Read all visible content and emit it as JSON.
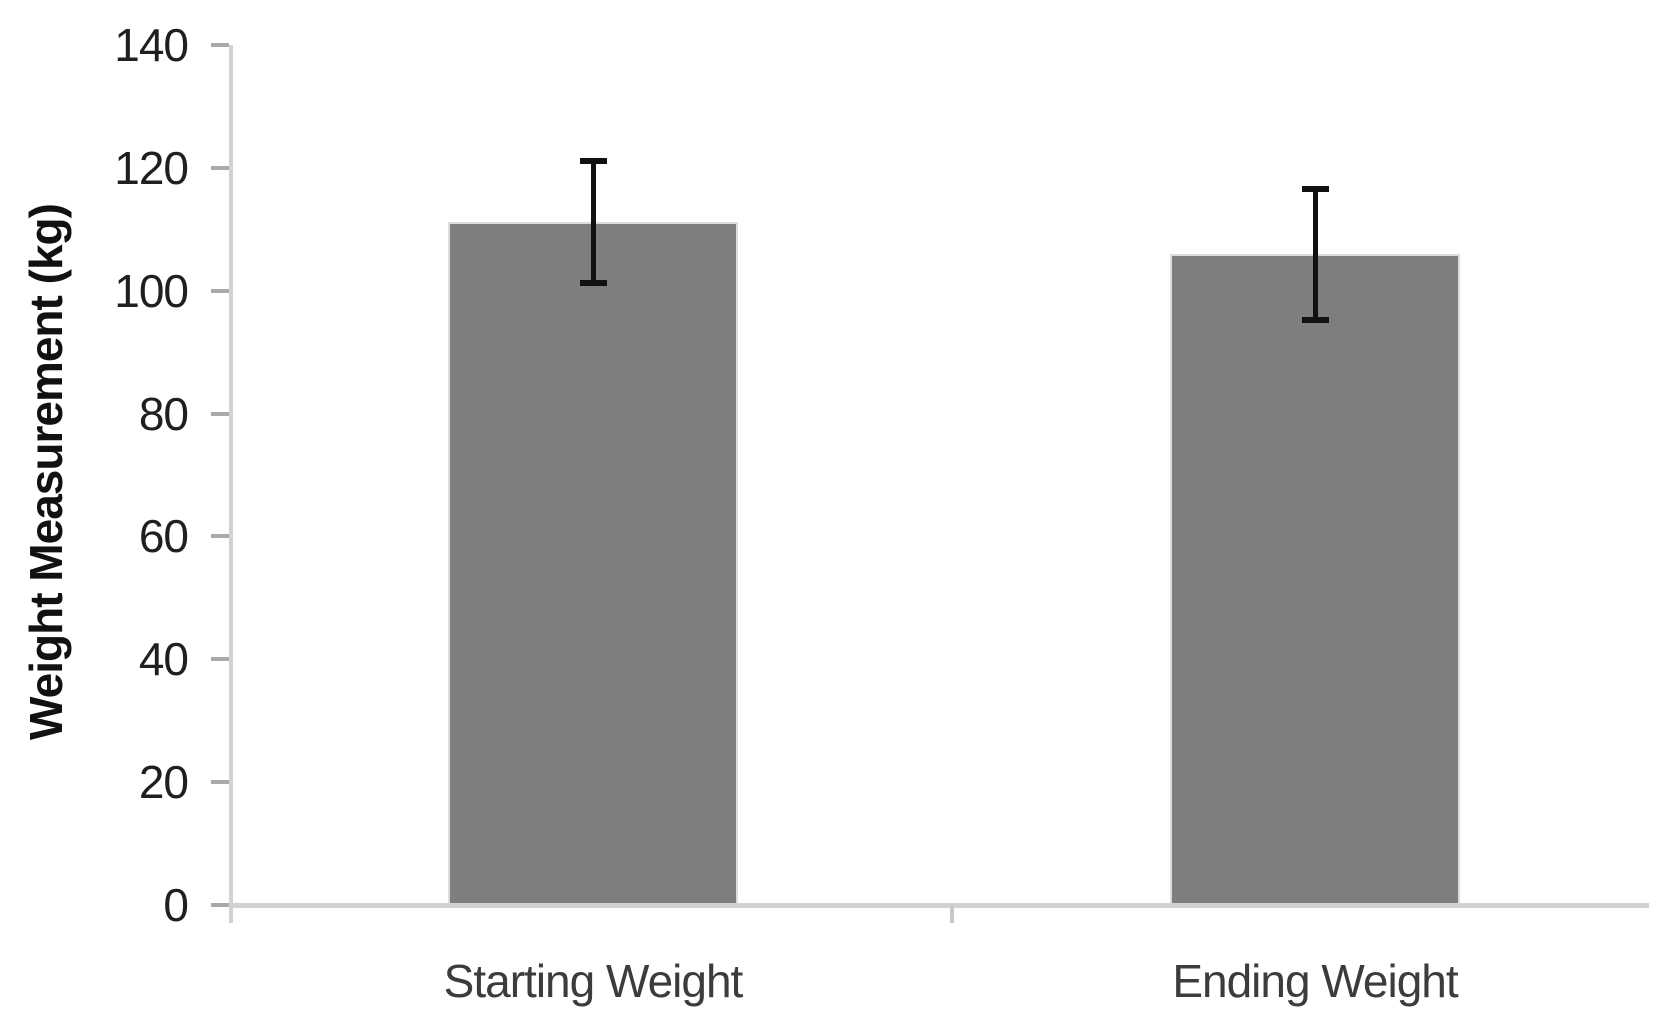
{
  "chart_data": {
    "type": "bar",
    "title": "",
    "categories": [
      "Starting Weight",
      "Ending Weight"
    ],
    "values": [
      111.2,
      105.9
    ],
    "error_bars": [
      10.2,
      11.0
    ],
    "xlabel": "",
    "ylabel": "Weight Measurement (kg)",
    "ylim": [
      0,
      140
    ],
    "yticks": [
      0,
      20,
      40,
      60,
      80,
      100,
      120,
      140
    ],
    "grid": "off",
    "legend": "none",
    "colors": {
      "bar_fill": "#7e7e7e",
      "bar_edge": "#dcdcdc",
      "axis_line": "#d2d2d2",
      "tick_mark": "#a9a9a9",
      "boundary_tick": "#c8c8c8",
      "error_bar": "#111111",
      "tick_text": "#1f1f1f",
      "category_text": "#3c3c3c",
      "ylabel_text": "#111111"
    }
  }
}
